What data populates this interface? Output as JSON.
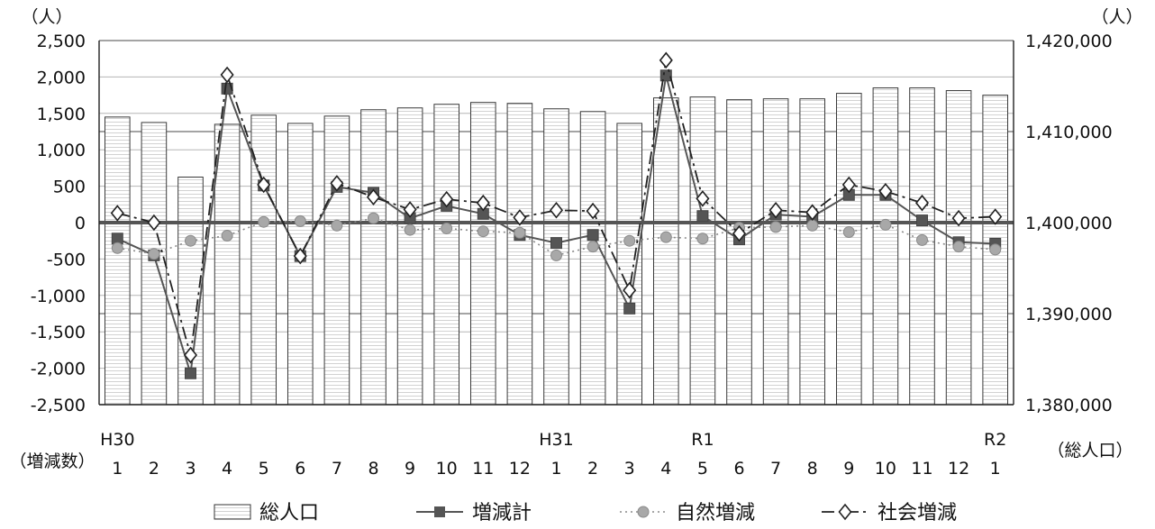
{
  "chart_data": {
    "type": "bar+line",
    "title": "",
    "left_unit": "（人）",
    "right_unit": "（人）",
    "left_axis_label": "（増減数）",
    "right_axis_label": "（総人口）",
    "left_ylim": [
      -2500,
      2500
    ],
    "left_ticks": [
      "2,500",
      "2,000",
      "1,500",
      "1,000",
      "500",
      "0",
      "-500",
      "-1,000",
      "-1,500",
      "-2,000",
      "-2,500"
    ],
    "left_tick_values": [
      2500,
      2000,
      1500,
      1000,
      500,
      0,
      -500,
      -1000,
      -1500,
      -2000,
      -2500
    ],
    "right_ylim": [
      1380000,
      1420000
    ],
    "right_ticks": [
      "1,420,000",
      "1,410,000",
      "1,400,000",
      "1,390,000",
      "1,380,000"
    ],
    "right_tick_values": [
      1420000,
      1410000,
      1400000,
      1390000,
      1380000
    ],
    "era_labels": [
      {
        "index": 0,
        "label": "H30"
      },
      {
        "index": 12,
        "label": "H31"
      },
      {
        "index": 16,
        "label": "R1"
      },
      {
        "index": 24,
        "label": "R2"
      }
    ],
    "categories": [
      "1",
      "2",
      "3",
      "4",
      "5",
      "6",
      "7",
      "8",
      "9",
      "10",
      "11",
      "12",
      "1",
      "2",
      "3",
      "4",
      "5",
      "6",
      "7",
      "8",
      "9",
      "10",
      "11",
      "12",
      "1"
    ],
    "series": [
      {
        "name": "総人口",
        "kind": "bar",
        "axis": "right",
        "values": [
          1411600,
          1411000,
          1405000,
          1410800,
          1411800,
          1410900,
          1411700,
          1412400,
          1412600,
          1413000,
          1413200,
          1413100,
          1412500,
          1412200,
          1410900,
          1413700,
          1413800,
          1413500,
          1413600,
          1413600,
          1414200,
          1414800,
          1414800,
          1414500,
          1414000
        ]
      },
      {
        "name": "増減計",
        "kind": "line",
        "axis": "left",
        "values": [
          -220,
          -450,
          -2070,
          1840,
          510,
          -460,
          490,
          410,
          60,
          230,
          120,
          -170,
          -280,
          -170,
          -1180,
          2020,
          90,
          -230,
          110,
          80,
          380,
          380,
          30,
          -270,
          -290
        ]
      },
      {
        "name": "自然増減",
        "kind": "line",
        "axis": "left",
        "values": [
          -350,
          -430,
          -250,
          -180,
          10,
          20,
          -40,
          60,
          -100,
          -80,
          -120,
          -140,
          -450,
          -330,
          -250,
          -200,
          -220,
          -70,
          -60,
          -40,
          -130,
          -30,
          -240,
          -330,
          -370
        ]
      },
      {
        "name": "社会増減",
        "kind": "line",
        "axis": "left",
        "values": [
          130,
          0,
          -1820,
          2030,
          520,
          -460,
          540,
          350,
          180,
          320,
          270,
          70,
          170,
          160,
          -930,
          2230,
          330,
          -150,
          170,
          140,
          520,
          430,
          270,
          60,
          80
        ]
      }
    ],
    "legend_position": "bottom",
    "gridlines": "horizontal"
  }
}
